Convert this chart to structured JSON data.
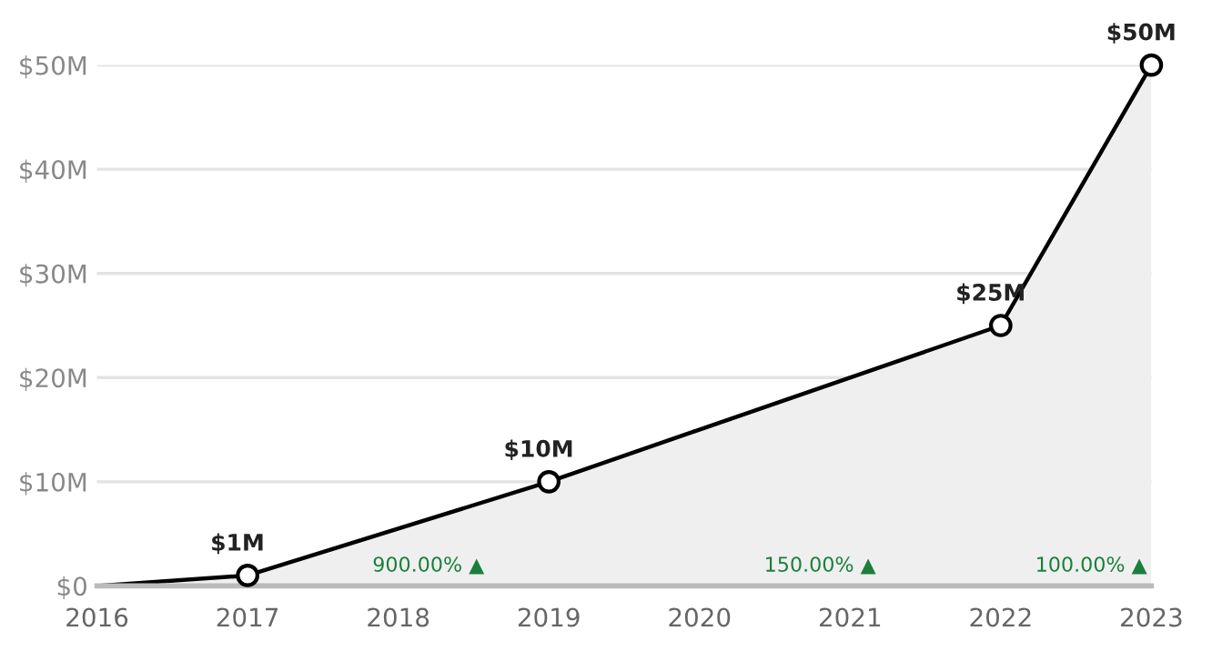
{
  "chart_data": {
    "type": "area",
    "x": [
      2016,
      2017,
      2019,
      2022,
      2023
    ],
    "series": [
      {
        "color": "#000000",
        "values": [
          0,
          1,
          10,
          25,
          50
        ]
      },
      {
        "type": "scatter",
        "x": [
          2017,
          2019,
          2022,
          2023
        ],
        "color": "#000000",
        "marker": "circle",
        "values": [
          1,
          10,
          25,
          50
        ],
        "value_labels": [
          "$1M",
          "$10M",
          "$25M",
          "$50M"
        ]
      }
    ],
    "xlim": [
      2016,
      2023
    ],
    "xticks": [
      2016,
      2017,
      2018,
      2019,
      2020,
      2021,
      2022,
      2023
    ],
    "ylim": [
      0,
      50
    ],
    "yticks": [
      {
        "value": 0,
        "label": "$0"
      },
      {
        "value": 10,
        "label": "$10M"
      },
      {
        "value": 20,
        "label": "$20M"
      },
      {
        "value": 30,
        "label": "$30M"
      },
      {
        "value": 40,
        "label": "$40M"
      },
      {
        "value": 50,
        "label": "$50M"
      }
    ],
    "grid": "y",
    "annotations": [
      "900.00% ▲",
      "150.00% ▲",
      "100.00% ▲"
    ]
  }
}
